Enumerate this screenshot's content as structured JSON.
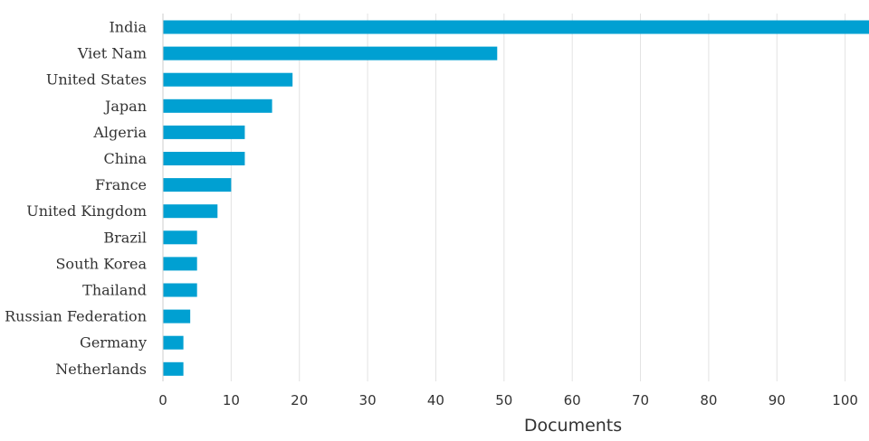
{
  "chart_data": {
    "type": "bar",
    "orientation": "horizontal",
    "categories": [
      "India",
      "Viet Nam",
      "United States",
      "Japan",
      "Algeria",
      "China",
      "France",
      "United Kingdom",
      "Brazil",
      "South Korea",
      "Thailand",
      "Russian Federation",
      "Germany",
      "Netherlands"
    ],
    "values": [
      104,
      49,
      19,
      16,
      12,
      12,
      10,
      8,
      5,
      5,
      5,
      4,
      3,
      3
    ],
    "title": "",
    "xlabel": "Documents",
    "ylabel": "",
    "xlim": [
      0,
      103.5
    ],
    "xticks": [
      0,
      10,
      20,
      30,
      40,
      50,
      60,
      70,
      80,
      90,
      100
    ],
    "grid": "vertical",
    "bar_color": "#00a0d2",
    "grid_color": "#e2e2e2",
    "text_color": "#333333"
  }
}
